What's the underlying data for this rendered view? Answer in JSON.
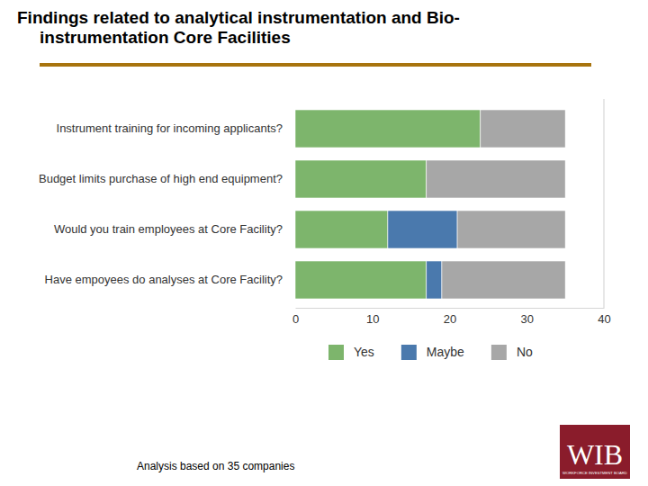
{
  "chart_data": {
    "type": "bar",
    "title": "Findings related to analytical instrumentation and Bio-instrumentation Core Facilities",
    "annotations": [
      "Analysis based on 35 companies"
    ],
    "categories": [
      "Instrument training for incoming applicants?",
      "Budget limits purchase of high end equipment?",
      "Would you train employees at Core Facility?",
      "Have empoyees do analyses at Core Facility?"
    ],
    "series": [
      {
        "name": "Yes",
        "color": "#7db56c",
        "values": [
          24,
          17,
          12,
          17
        ]
      },
      {
        "name": "Maybe",
        "color": "#4a79ad",
        "values": [
          0,
          0,
          9,
          2
        ]
      },
      {
        "name": "No",
        "color": "#a7a7a7",
        "values": [
          11,
          18,
          14,
          16
        ]
      }
    ],
    "xlim": [
      0,
      40
    ],
    "xticks": [
      0,
      10,
      20,
      30,
      40
    ],
    "orientation": "horizontal",
    "stacked": true,
    "legend": "bottom",
    "grid": false
  },
  "logo": {
    "text": "WIB",
    "subtitle": "WORKFORCE INVESTMENT BOARD"
  }
}
